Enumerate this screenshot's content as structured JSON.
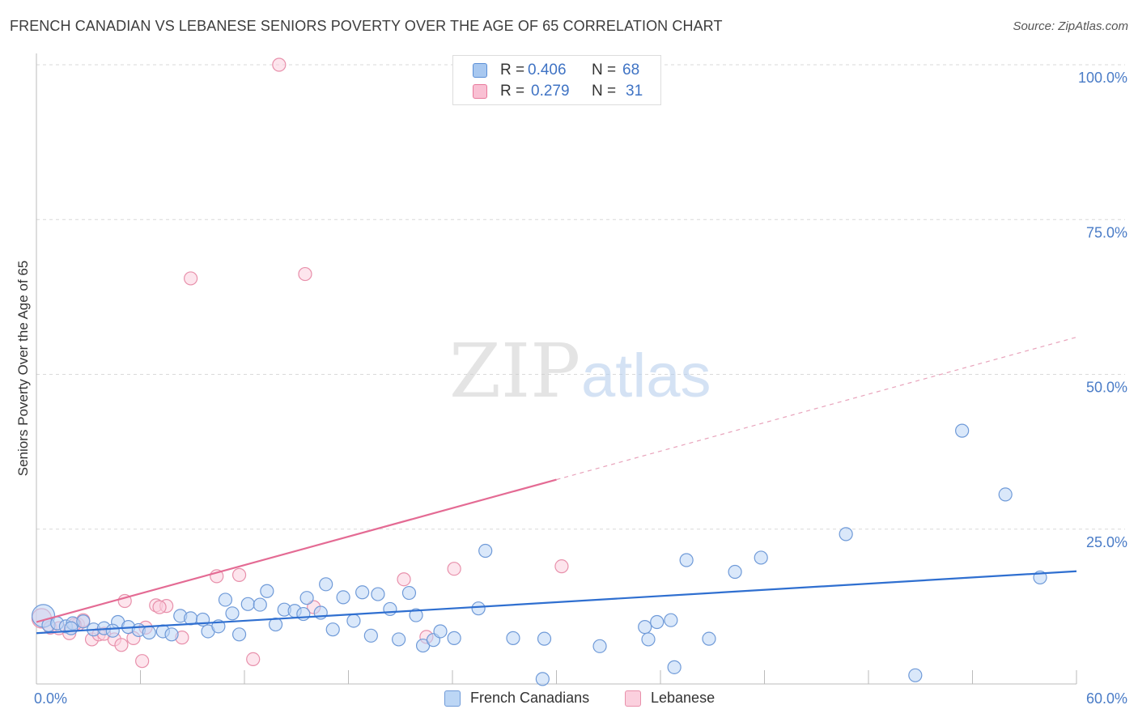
{
  "title": "FRENCH CANADIAN VS LEBANESE SENIORS POVERTY OVER THE AGE OF 65 CORRELATION CHART",
  "source": "Source: ZipAtlas.com",
  "watermark": {
    "zip": "ZIP",
    "atlas": "atlas"
  },
  "legend_top": {
    "rows": [
      {
        "r_label": "R =",
        "r_value": "0.406",
        "n_label": "N =",
        "n_value": "68",
        "color": "#a8c8f0",
        "border": "#5b8fd6"
      },
      {
        "r_label": "R =",
        "r_value": "0.279",
        "n_label": "N =",
        "n_value": "31",
        "color": "#f9c0d3",
        "border": "#e8799b"
      }
    ]
  },
  "legend_bottom": [
    {
      "label": "French Canadians",
      "color": "#bcd6f5",
      "border": "#6f9ad8"
    },
    {
      "label": "Lebanese",
      "color": "#fbd0de",
      "border": "#e890ab"
    }
  ],
  "chart_data": {
    "type": "scatter",
    "title": "FRENCH CANADIAN VS LEBANESE SENIORS POVERTY OVER THE AGE OF 65 CORRELATION CHART",
    "xlabel": "",
    "ylabel": "Seniors Poverty Over the Age of 65",
    "xlim": [
      0,
      60
    ],
    "ylim": [
      0,
      100
    ],
    "x_tick_labels": [
      {
        "value": 0,
        "label": "0.0%"
      },
      {
        "value": 60,
        "label": "60.0%"
      }
    ],
    "y_tick_labels": [
      {
        "value": 25,
        "label": "25.0%"
      },
      {
        "value": 50,
        "label": "50.0%"
      },
      {
        "value": 75,
        "label": "75.0%"
      },
      {
        "value": 100,
        "label": "100.0%"
      }
    ],
    "grid": "horizontal dashed",
    "legend_position": "top-center",
    "series": [
      {
        "name": "French Canadians",
        "color": "#6f9ad8",
        "fill": "#bcd6f5",
        "r": 0.406,
        "n": 68,
        "trend": {
          "x": [
            0,
            60
          ],
          "y": [
            8.2,
            18.2
          ],
          "style": "solid",
          "color": "#2f6fd0"
        },
        "points": [
          [
            0.4,
            11.0
          ],
          [
            0.7,
            9.5
          ],
          [
            1.2,
            9.8
          ],
          [
            1.7,
            9.3
          ],
          [
            2.1,
            9.8
          ],
          [
            2.7,
            10.1
          ],
          [
            3.3,
            8.8
          ],
          [
            3.9,
            9.0
          ],
          [
            4.7,
            10.0
          ],
          [
            4.4,
            8.6
          ],
          [
            5.3,
            9.2
          ],
          [
            5.9,
            8.7
          ],
          [
            6.5,
            8.3
          ],
          [
            7.3,
            8.5
          ],
          [
            7.8,
            8.0
          ],
          [
            8.3,
            11.0
          ],
          [
            8.9,
            10.6
          ],
          [
            9.6,
            10.4
          ],
          [
            9.9,
            8.5
          ],
          [
            10.5,
            9.3
          ],
          [
            10.9,
            13.6
          ],
          [
            11.3,
            11.4
          ],
          [
            11.7,
            8.0
          ],
          [
            12.2,
            12.9
          ],
          [
            12.9,
            12.8
          ],
          [
            13.3,
            15.0
          ],
          [
            13.8,
            9.6
          ],
          [
            14.3,
            12.0
          ],
          [
            14.9,
            11.8
          ],
          [
            15.4,
            11.3
          ],
          [
            15.6,
            13.9
          ],
          [
            16.4,
            11.5
          ],
          [
            16.7,
            16.1
          ],
          [
            17.1,
            8.8
          ],
          [
            17.7,
            14.0
          ],
          [
            18.3,
            10.2
          ],
          [
            18.8,
            14.8
          ],
          [
            19.3,
            7.8
          ],
          [
            19.7,
            14.5
          ],
          [
            20.4,
            12.1
          ],
          [
            20.9,
            7.2
          ],
          [
            21.5,
            14.7
          ],
          [
            21.9,
            11.1
          ],
          [
            22.3,
            6.2
          ],
          [
            22.9,
            7.1
          ],
          [
            23.3,
            8.5
          ],
          [
            24.1,
            7.4
          ],
          [
            25.5,
            12.2
          ],
          [
            25.9,
            21.5
          ],
          [
            27.5,
            7.4
          ],
          [
            29.3,
            7.3
          ],
          [
            29.2,
            0.8
          ],
          [
            32.5,
            6.1
          ],
          [
            35.1,
            9.2
          ],
          [
            35.3,
            7.2
          ],
          [
            35.8,
            10.0
          ],
          [
            36.6,
            10.3
          ],
          [
            36.8,
            2.7
          ],
          [
            37.5,
            20.0
          ],
          [
            38.8,
            7.3
          ],
          [
            40.3,
            18.1
          ],
          [
            41.8,
            20.4
          ],
          [
            46.7,
            24.2
          ],
          [
            50.7,
            1.4
          ],
          [
            53.4,
            40.9
          ],
          [
            55.9,
            30.6
          ],
          [
            57.9,
            17.2
          ],
          [
            2.0,
            9.0
          ]
        ]
      },
      {
        "name": "Lebanese",
        "color": "#e890ab",
        "fill": "#fbd0de",
        "r": 0.279,
        "n": 31,
        "trend": {
          "x": [
            0,
            30
          ],
          "y": [
            10.0,
            33.0
          ],
          "style": "solid",
          "color": "#e46b94"
        },
        "trend_extension": {
          "x": [
            30,
            60
          ],
          "y": [
            33.0,
            56.0
          ],
          "style": "dashed",
          "color": "#e8a3bb"
        },
        "points": [
          [
            0.3,
            10.6
          ],
          [
            0.8,
            9.1
          ],
          [
            1.3,
            9.0
          ],
          [
            1.9,
            8.2
          ],
          [
            2.4,
            9.6
          ],
          [
            2.7,
            10.3
          ],
          [
            3.2,
            7.2
          ],
          [
            3.6,
            8.0
          ],
          [
            3.9,
            8.1
          ],
          [
            4.5,
            7.2
          ],
          [
            4.9,
            6.3
          ],
          [
            5.1,
            13.4
          ],
          [
            5.6,
            7.4
          ],
          [
            6.1,
            3.7
          ],
          [
            6.3,
            9.1
          ],
          [
            6.9,
            12.7
          ],
          [
            7.5,
            12.6
          ],
          [
            8.4,
            7.5
          ],
          [
            8.9,
            65.5
          ],
          [
            10.4,
            17.4
          ],
          [
            11.7,
            17.6
          ],
          [
            12.5,
            4.0
          ],
          [
            14.0,
            100.0
          ],
          [
            15.5,
            66.2
          ],
          [
            16.0,
            12.4
          ],
          [
            21.2,
            16.9
          ],
          [
            22.5,
            7.6
          ],
          [
            24.1,
            18.6
          ],
          [
            30.3,
            19.0
          ],
          [
            2.2,
            9.6
          ],
          [
            7.1,
            12.4
          ]
        ]
      }
    ]
  }
}
